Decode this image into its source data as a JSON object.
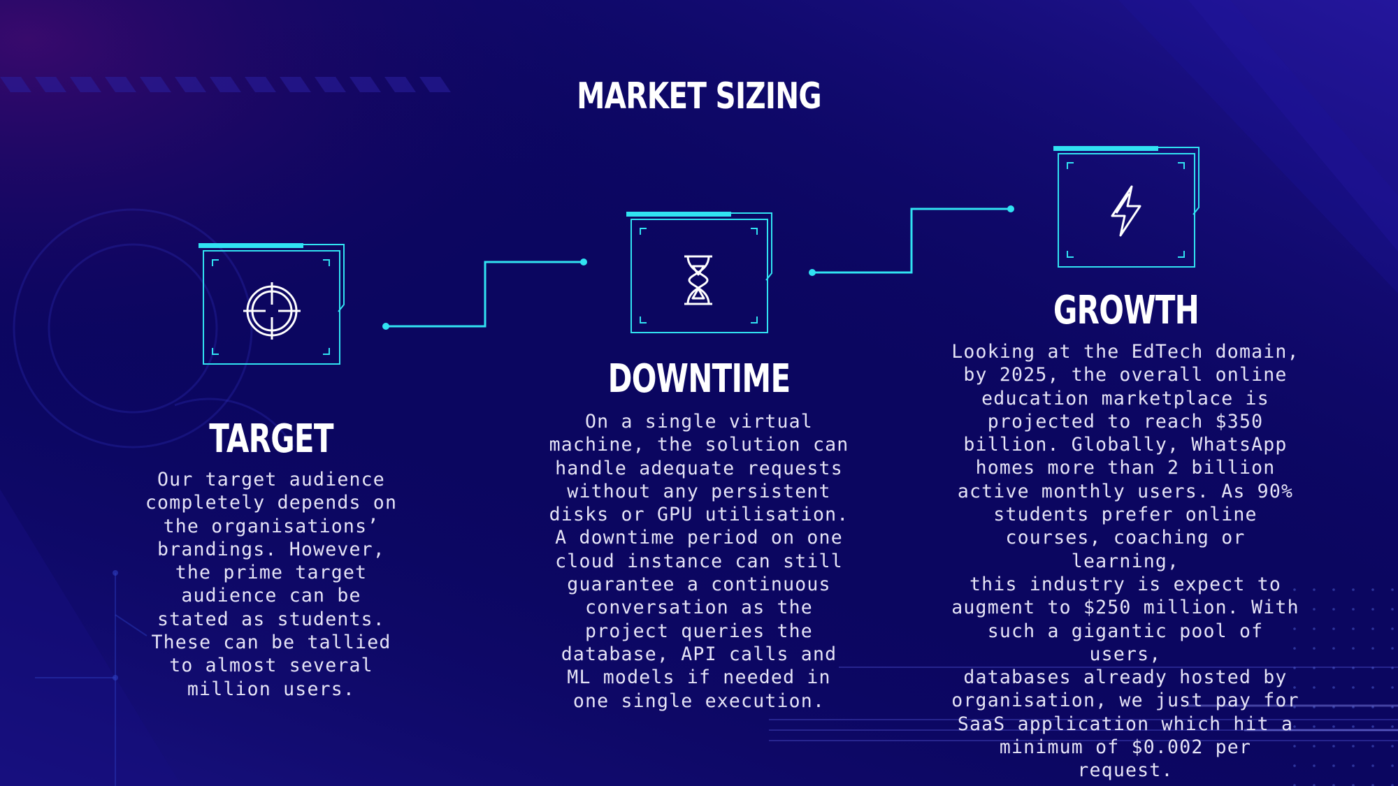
{
  "slide": {
    "title": "MARKET SIZING",
    "accent_color": "#31e3f2",
    "background_color": "#0b0660"
  },
  "items": [
    {
      "heading": "TARGET",
      "icon": "crosshair-icon",
      "text": "Our target audience\ncompletely depends on\nthe organisations’\nbrandings. However,\nthe prime target\naudience can be\nstated as students.\nThese can be tallied\nto almost several\nmillion users."
    },
    {
      "heading": "DOWNTIME",
      "icon": "hourglass-icon",
      "text": " On a single virtual\nmachine, the solution can\nhandle adequate requests\nwithout any persistent\ndisks or GPU utilisation.\nA downtime period on one\ncloud instance can still\nguarantee a continuous\nconversation as the\nproject queries the\ndatabase, API calls and\nML models if needed in\none single execution."
    },
    {
      "heading": "GROWTH",
      "icon": "lightning-icon",
      "text": "Looking at the EdTech domain,\nby 2025, the overall online\neducation marketplace is\nprojected to reach $350\nbillion. Globally, WhatsApp\nhomes more than 2 billion\nactive monthly users. As 90%\nstudents prefer online\ncourses, coaching or learning,\nthis industry is expect to\naugment to $250 million. With\nsuch a gigantic pool of users,\ndatabases already hosted by\norganisation, we just pay for\nSaaS application which hit a\nminimum of $0.002 per request."
    }
  ]
}
